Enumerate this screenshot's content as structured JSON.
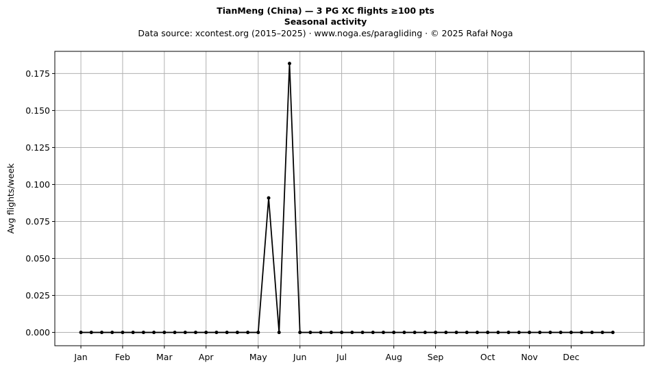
{
  "chart_data": {
    "type": "line",
    "title": "TianMeng (China)  —  3 PG XC flights ≥100 pts",
    "subtitle": "Seasonal activity",
    "source": "Data source: xcontest.org (2015–2025)  ·  www.noga.es/paragliding  ·  © 2025 Rafał Noga",
    "xlabel": "",
    "ylabel": "Avg flights/week",
    "ylim": [
      -0.009,
      0.19
    ],
    "yticks": [
      0.0,
      0.025,
      0.05,
      0.075,
      0.1,
      0.125,
      0.15,
      0.175
    ],
    "ytick_labels": [
      "0.000",
      "0.025",
      "0.050",
      "0.075",
      "0.100",
      "0.125",
      "0.150",
      "0.175"
    ],
    "xlim": [
      -2.5,
      54
    ],
    "xticks": [
      0,
      4,
      8,
      12,
      17,
      21,
      25,
      30,
      34,
      39,
      43,
      47
    ],
    "xtick_labels": [
      "Jan",
      "Feb",
      "Mar",
      "Apr",
      "May",
      "Jun",
      "Jul",
      "Aug",
      "Sep",
      "Oct",
      "Nov",
      "Dec"
    ],
    "grid": true,
    "series": [
      {
        "color": "#000000",
        "x": [
          0,
          1,
          2,
          3,
          4,
          5,
          6,
          7,
          8,
          9,
          10,
          11,
          12,
          13,
          14,
          15,
          16,
          17,
          18,
          19,
          20,
          21,
          22,
          23,
          24,
          25,
          26,
          27,
          28,
          29,
          30,
          31,
          32,
          33,
          34,
          35,
          36,
          37,
          38,
          39,
          40,
          41,
          42,
          43,
          44,
          45,
          46,
          47,
          48,
          49,
          50,
          51
        ],
        "values": [
          0,
          0,
          0,
          0,
          0,
          0,
          0,
          0,
          0,
          0,
          0,
          0,
          0,
          0,
          0,
          0,
          0,
          0,
          0.0909,
          0,
          0.1818,
          0,
          0,
          0,
          0,
          0,
          0,
          0,
          0,
          0,
          0,
          0,
          0,
          0,
          0,
          0,
          0,
          0,
          0,
          0,
          0,
          0,
          0,
          0,
          0,
          0,
          0,
          0,
          0,
          0,
          0,
          0
        ]
      }
    ]
  }
}
